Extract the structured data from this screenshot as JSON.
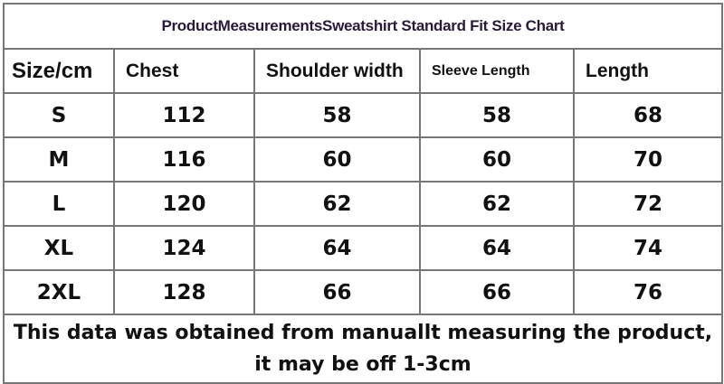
{
  "title": "ProductMeasurementsSweatshirt Standard Fit Size Chart",
  "headers": [
    "Size/cm",
    "Chest",
    "Shoulder width",
    "Sleeve Length",
    "Length"
  ],
  "rows": [
    [
      "S",
      "112",
      "58",
      "58",
      "68"
    ],
    [
      "M",
      "116",
      "60",
      "60",
      "70"
    ],
    [
      "L",
      "120",
      "62",
      "62",
      "72"
    ],
    [
      "XL",
      "124",
      "64",
      "64",
      "74"
    ],
    [
      "2XL",
      "128",
      "66",
      "66",
      "76"
    ]
  ],
  "footer": {
    "line1": "This data was obtained from manuallt measuring the product,",
    "line2": "it may be off 1-3cm"
  }
}
